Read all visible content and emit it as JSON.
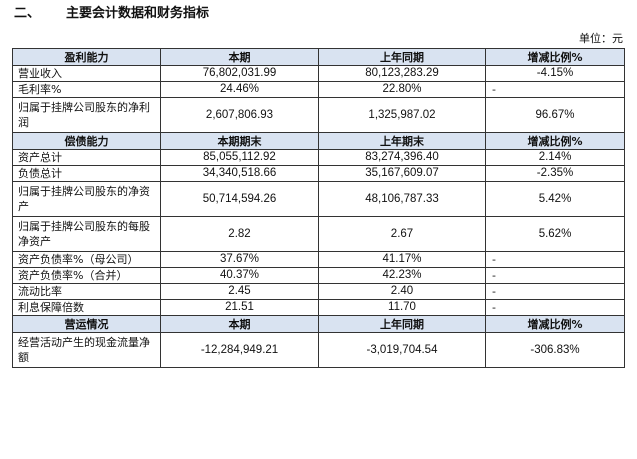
{
  "heading": {
    "number": "二、",
    "title": "主要会计数据和财务指标"
  },
  "unit_label": "单位：元",
  "sections": [
    {
      "header": [
        "盈利能力",
        "本期",
        "上年同期",
        "增减比例%"
      ],
      "rows": [
        {
          "label": "营业收入",
          "current": "76,802,031.99",
          "previous": "80,123,283.29",
          "change": "-4.15%"
        },
        {
          "label": "毛利率%",
          "current": "24.46%",
          "previous": "22.80%",
          "change": "-"
        },
        {
          "label": "归属于挂牌公司股东的净利润",
          "current": "2,607,806.93",
          "previous": "1,325,987.02",
          "change": "96.67%"
        }
      ]
    },
    {
      "header": [
        "偿债能力",
        "本期期末",
        "上年期末",
        "增减比例%"
      ],
      "rows": [
        {
          "label": "资产总计",
          "current": "85,055,112.92",
          "previous": "83,274,396.40",
          "change": "2.14%"
        },
        {
          "label": "负债总计",
          "current": "34,340,518.66",
          "previous": "35,167,609.07",
          "change": "-2.35%"
        },
        {
          "label": "归属于挂牌公司股东的净资产",
          "current": "50,714,594.26",
          "previous": "48,106,787.33",
          "change": "5.42%"
        },
        {
          "label": "归属于挂牌公司股东的每股净资产",
          "current": "2.82",
          "previous": "2.67",
          "change": "5.62%"
        },
        {
          "label": "资产负债率%（母公司）",
          "current": "37.67%",
          "previous": "41.17%",
          "change": "-"
        },
        {
          "label": "资产负债率%（合并）",
          "current": "40.37%",
          "previous": "42.23%",
          "change": "-"
        },
        {
          "label": "流动比率",
          "current": "2.45",
          "previous": "2.40",
          "change": "-"
        },
        {
          "label": "利息保障倍数",
          "current": "21.51",
          "previous": "11.70",
          "change": "-"
        }
      ]
    },
    {
      "header": [
        "营运情况",
        "本期",
        "上年同期",
        "增减比例%"
      ],
      "rows": [
        {
          "label": "经营活动产生的现金流量净额",
          "current": "-12,284,949.21",
          "previous": "-3,019,704.54",
          "change": "-306.83%"
        }
      ]
    }
  ]
}
